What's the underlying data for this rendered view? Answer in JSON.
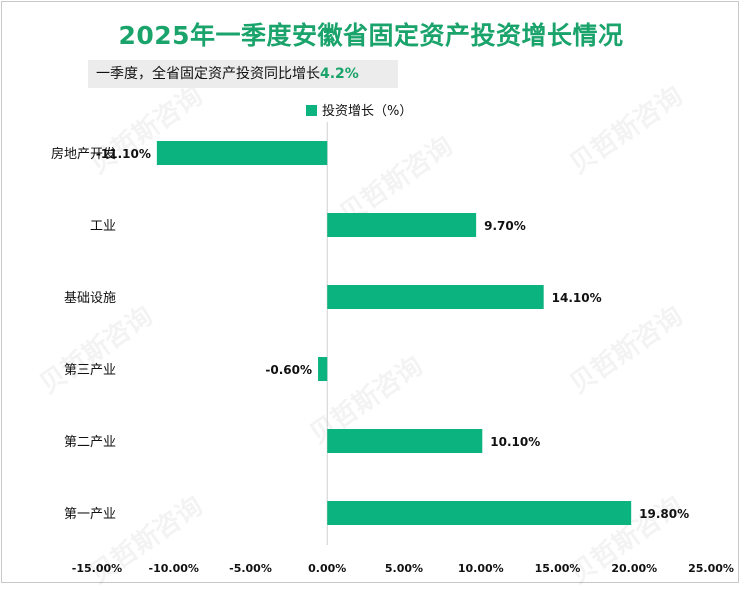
{
  "header": {
    "title": "2025年一季度安徽省固定资产投资增长情况",
    "subtitle_prefix": "一季度，全省固定资产投资同比增长",
    "subtitle_value": "4.2%"
  },
  "watermark": {
    "text": "贝哲斯咨询"
  },
  "chart_data": {
    "type": "bar",
    "orientation": "horizontal",
    "categories": [
      "房地产开发",
      "工业",
      "基础设施",
      "第三产业",
      "第二产业",
      "第一产业"
    ],
    "series": [
      {
        "name": "投资增长（%）",
        "values": [
          -11.1,
          9.7,
          14.1,
          -0.6,
          10.1,
          19.8
        ],
        "data_labels": [
          "-11.10%",
          "9.70%",
          "14.10%",
          "-0.60%",
          "10.10%",
          "19.80%"
        ],
        "color": "#0bb37e"
      }
    ],
    "xlim": [
      -15,
      25
    ],
    "xticks": [
      -15,
      -10,
      -5,
      0,
      5,
      10,
      15,
      20,
      25
    ],
    "xtick_labels": [
      "-15.00%",
      "-10.00%",
      "-5.00%",
      "0.00%",
      "5.00%",
      "10.00%",
      "15.00%",
      "20.00%",
      "25.00%"
    ],
    "legend_position": "top",
    "grid": false
  }
}
